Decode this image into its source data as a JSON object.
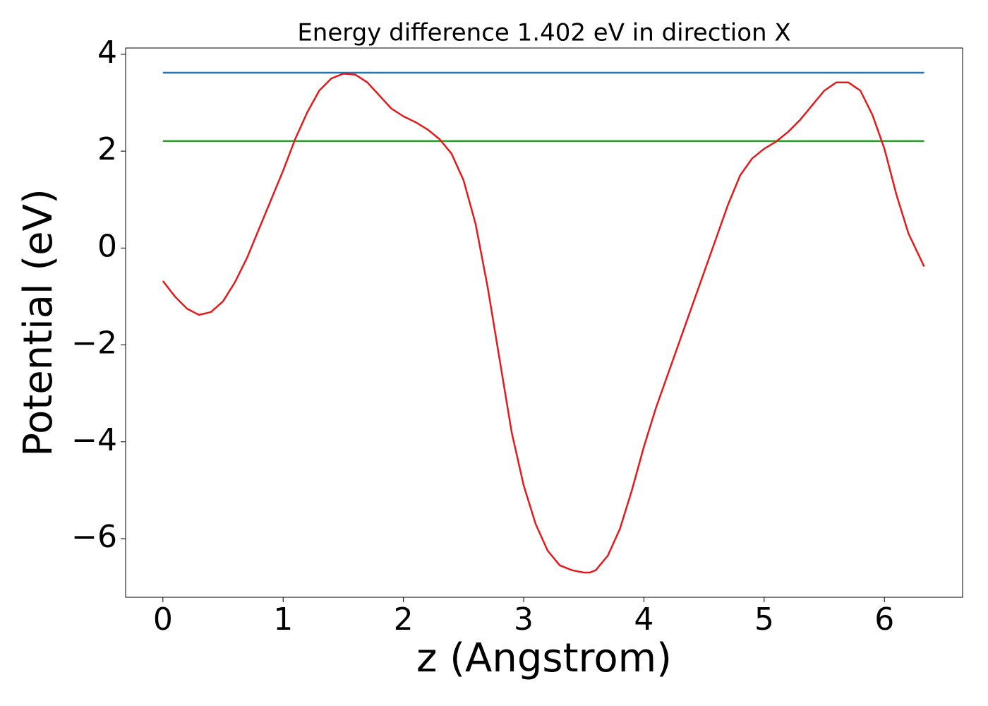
{
  "chart_data": {
    "type": "line",
    "title": "Energy difference 1.402 eV in direction X",
    "xlabel": "z (Angstrom)",
    "ylabel": "Potential (eV)",
    "xlim": [
      -0.31,
      6.65
    ],
    "ylim": [
      -7.21,
      4.13
    ],
    "xticks": [
      0,
      1,
      2,
      3,
      4,
      5,
      6
    ],
    "yticks": [
      {
        "value": -6,
        "label": "−6"
      },
      {
        "value": -4,
        "label": "−4"
      },
      {
        "value": -2,
        "label": "−2"
      },
      0,
      2,
      4
    ],
    "grid": false,
    "series": [
      {
        "color": "#1f77b4",
        "x": [
          0,
          6.33
        ],
        "values": [
          3.62,
          3.62
        ]
      },
      {
        "color": "#2ca02c",
        "x": [
          0,
          6.33
        ],
        "values": [
          2.21,
          2.21
        ]
      },
      {
        "color": "#e41a1c",
        "x": [
          0,
          0.1,
          0.2,
          0.3,
          0.4,
          0.5,
          0.6,
          0.7,
          0.8,
          0.9,
          1.0,
          1.1,
          1.2,
          1.3,
          1.4,
          1.5,
          1.6,
          1.7,
          1.8,
          1.9,
          2.0,
          2.1,
          2.2,
          2.3,
          2.4,
          2.5,
          2.6,
          2.7,
          2.8,
          2.9,
          3.0,
          3.1,
          3.2,
          3.3,
          3.4,
          3.5,
          3.55,
          3.6,
          3.7,
          3.8,
          3.9,
          4.0,
          4.1,
          4.2,
          4.3,
          4.4,
          4.5,
          4.6,
          4.7,
          4.8,
          4.9,
          5.0,
          5.1,
          5.2,
          5.3,
          5.4,
          5.5,
          5.6,
          5.7,
          5.8,
          5.9,
          6.0,
          6.1,
          6.2,
          6.33
        ],
        "values": [
          -0.68,
          -1.0,
          -1.25,
          -1.38,
          -1.32,
          -1.1,
          -0.7,
          -0.2,
          0.4,
          1.0,
          1.6,
          2.25,
          2.8,
          3.25,
          3.5,
          3.6,
          3.58,
          3.42,
          3.15,
          2.88,
          2.72,
          2.6,
          2.45,
          2.25,
          1.95,
          1.4,
          0.5,
          -0.8,
          -2.3,
          -3.8,
          -4.9,
          -5.7,
          -6.25,
          -6.55,
          -6.65,
          -6.7,
          -6.7,
          -6.65,
          -6.35,
          -5.8,
          -5.0,
          -4.1,
          -3.3,
          -2.6,
          -1.9,
          -1.2,
          -0.5,
          0.2,
          0.9,
          1.5,
          1.85,
          2.05,
          2.2,
          2.4,
          2.65,
          2.95,
          3.25,
          3.42,
          3.42,
          3.25,
          2.75,
          2.05,
          1.1,
          0.3,
          -0.38
        ]
      }
    ]
  }
}
